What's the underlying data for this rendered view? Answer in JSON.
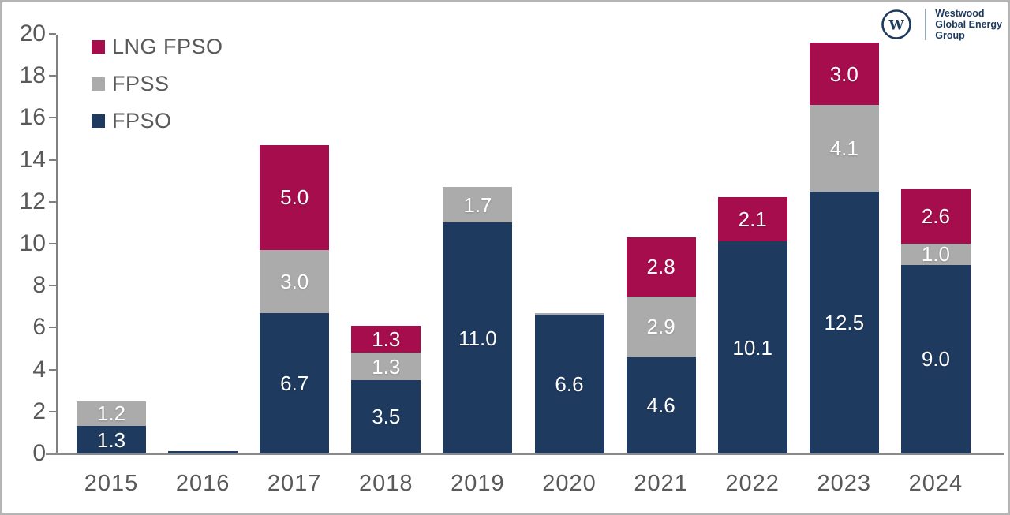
{
  "logo": {
    "lines": [
      "Westwood",
      "Global Energy",
      "Group"
    ],
    "monogram": "W"
  },
  "legend": {
    "items": [
      {
        "label": "LNG FPSO",
        "color": "#a60d4c"
      },
      {
        "label": "FPSS",
        "color": "#ababab"
      },
      {
        "label": "FPSO",
        "color": "#1f3a5f"
      }
    ]
  },
  "chart_data": {
    "type": "bar",
    "stacked": true,
    "title": "",
    "xlabel": "",
    "ylabel": "",
    "categories": [
      "2015",
      "2016",
      "2017",
      "2018",
      "2019",
      "2020",
      "2021",
      "2022",
      "2023",
      "2024"
    ],
    "series": [
      {
        "name": "FPSO",
        "color": "#1f3a5f",
        "values": [
          1.3,
          0.1,
          6.7,
          3.5,
          11.0,
          6.6,
          4.6,
          10.1,
          12.5,
          9.0
        ],
        "labels": [
          "1.3",
          "",
          "6.7",
          "3.5",
          "11.0",
          "6.6",
          "4.6",
          "10.1",
          "12.5",
          "9.0"
        ]
      },
      {
        "name": "FPSS",
        "color": "#ababab",
        "values": [
          1.2,
          0,
          3.0,
          1.3,
          1.7,
          0.1,
          2.9,
          0,
          4.1,
          1.0
        ],
        "labels": [
          "1.2",
          "",
          "3.0",
          "1.3",
          "1.7",
          "",
          "2.9",
          "",
          "4.1",
          "1.0"
        ]
      },
      {
        "name": "LNG FPSO",
        "color": "#a60d4c",
        "values": [
          0,
          0,
          5.0,
          1.3,
          0,
          0,
          2.8,
          2.1,
          3.0,
          2.6
        ],
        "labels": [
          "",
          "",
          "5.0",
          "1.3",
          "",
          "",
          "2.8",
          "2.1",
          "3.0",
          "2.6"
        ]
      }
    ],
    "ylim": [
      0,
      20
    ],
    "y_ticks": [
      0,
      2,
      4,
      6,
      8,
      10,
      12,
      14,
      16,
      18,
      20
    ],
    "grid": false,
    "legend_position": "top-left",
    "value_label_color": "#ffffff",
    "axis_text_color": "#595959"
  }
}
